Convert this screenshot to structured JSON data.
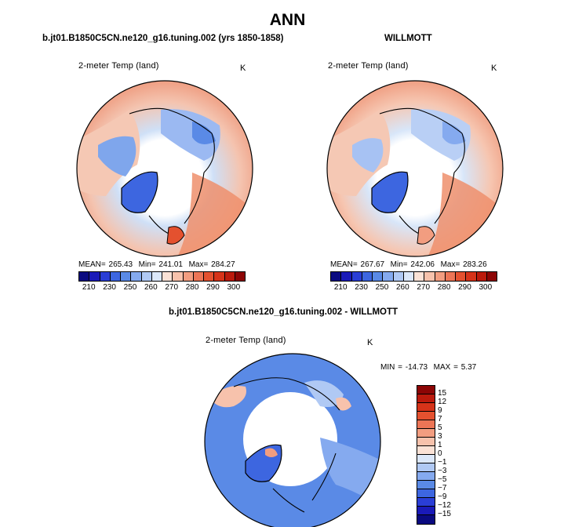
{
  "page_title": "ANN",
  "panels": {
    "model": {
      "title": "b.jt01.B1850C5CN.ne120_g16.tuning.002 (yrs 1850-1858)",
      "variable": "2-meter Temp (land)",
      "unit": "K",
      "mean_label": "MEAN=",
      "mean": "265.43",
      "min_label": "Min=",
      "min": "241.01",
      "max_label": "Max=",
      "max": "284.27"
    },
    "obs": {
      "title": "WILLMOTT",
      "variable": "2-meter Temp (land)",
      "unit": "K",
      "mean_label": "MEAN=",
      "mean": "267.67",
      "min_label": "Min=",
      "min": "242.06",
      "max_label": "Max=",
      "max": "283.26"
    },
    "diff": {
      "title": "b.jt01.B1850C5CN.ne120_g16.tuning.002 - WILLMOTT",
      "variable": "2-meter Temp (land)",
      "unit": "K",
      "min_label": "MIN =",
      "min": "-14.73",
      "max_label": "MAX =",
      "max": "5.37"
    }
  },
  "chart_data": [
    {
      "type": "heatmap",
      "projection": "north-polar-stereographic",
      "title": "b.jt01.B1850C5CN.ne120_g16.tuning.002 (yrs 1850-1858)",
      "variable": "2-meter Temp (land)",
      "unit": "K",
      "stats": {
        "mean": 265.43,
        "min": 241.01,
        "max": 284.27
      },
      "colorbar": {
        "orientation": "horizontal",
        "tick_labels": [
          "210",
          "230",
          "250",
          "260",
          "270",
          "280",
          "290",
          "300"
        ],
        "colors": [
          "#0a0a80",
          "#1a1ab8",
          "#2a3ed6",
          "#3d66e0",
          "#5a8ae6",
          "#85aaef",
          "#b0c9f4",
          "#dce8fa",
          "#fbe2d6",
          "#f7c2ac",
          "#f29d80",
          "#ec7556",
          "#e4512f",
          "#d63319",
          "#bb1a0c",
          "#8c0505"
        ]
      }
    },
    {
      "type": "heatmap",
      "projection": "north-polar-stereographic",
      "title": "WILLMOTT",
      "variable": "2-meter Temp (land)",
      "unit": "K",
      "stats": {
        "mean": 267.67,
        "min": 242.06,
        "max": 283.26
      },
      "colorbar": {
        "orientation": "horizontal",
        "tick_labels": [
          "210",
          "230",
          "250",
          "260",
          "270",
          "280",
          "290",
          "300"
        ],
        "colors": [
          "#0a0a80",
          "#1a1ab8",
          "#2a3ed6",
          "#3d66e0",
          "#5a8ae6",
          "#85aaef",
          "#b0c9f4",
          "#dce8fa",
          "#fbe2d6",
          "#f7c2ac",
          "#f29d80",
          "#ec7556",
          "#e4512f",
          "#d63319",
          "#bb1a0c",
          "#8c0505"
        ]
      }
    },
    {
      "type": "heatmap",
      "projection": "north-polar-stereographic",
      "title": "b.jt01.B1850C5CN.ne120_g16.tuning.002 - WILLMOTT",
      "variable": "2-meter Temp (land)",
      "unit": "K",
      "stats": {
        "min": -14.73,
        "max": 5.37
      },
      "colorbar": {
        "orientation": "vertical",
        "tick_labels": [
          "15",
          "12",
          "9",
          "7",
          "5",
          "3",
          "1",
          "0",
          "−1",
          "−3",
          "−5",
          "−7",
          "−9",
          "−12",
          "−15"
        ],
        "colors": [
          "#8c0505",
          "#bb1a0c",
          "#d63319",
          "#e4512f",
          "#ec7556",
          "#f29d80",
          "#f7c2ac",
          "#fbe2d6",
          "#dce8fa",
          "#b0c9f4",
          "#85aaef",
          "#5a8ae6",
          "#3d66e0",
          "#2a3ed6",
          "#1a1ab8",
          "#0a0a80"
        ]
      }
    }
  ]
}
